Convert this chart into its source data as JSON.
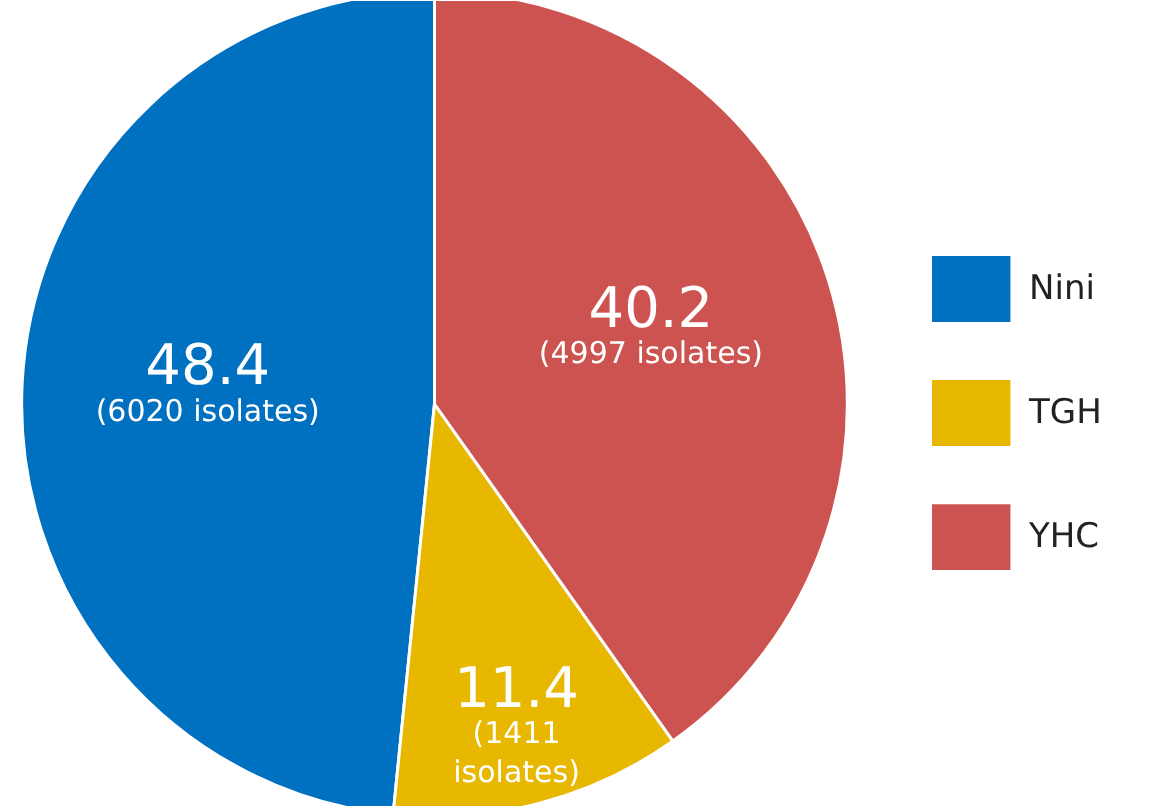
{
  "chart_data": {
    "type": "pie",
    "categories": [
      "Nini",
      "TGH",
      "YHC"
    ],
    "values": [
      48.4,
      11.4,
      40.2
    ],
    "colors": [
      "#0070c0",
      "#e8b800",
      "#cd5350"
    ],
    "value_labels": [
      "48.4\n(6020 isolates)",
      "11.4\n(1411\nisolates)",
      "40.2\n(4997 isolates)"
    ],
    "legend": "right"
  }
}
